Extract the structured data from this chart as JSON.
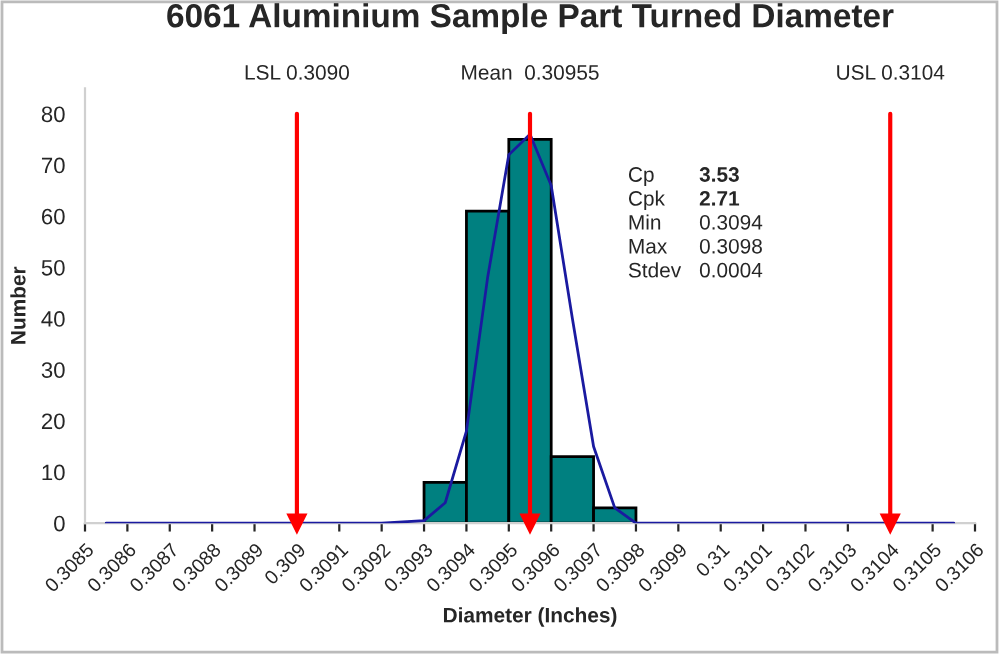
{
  "chart_data": {
    "type": "histogram",
    "title": "6061 Aluminium Sample Part Turned Diameter",
    "xlabel": "Diameter (Inches)",
    "ylabel": "Number",
    "bins": [
      0.3093,
      0.3094,
      0.3095,
      0.3096,
      0.3097,
      0.3098
    ],
    "values": [
      8,
      61,
      75,
      13,
      3
    ],
    "color": "#008080",
    "series": [
      {
        "type": "line",
        "color": "#1a1aa0",
        "x": [
          0.30855,
          0.3092,
          0.3093,
          0.30935,
          0.3094,
          0.30945,
          0.3095,
          0.30955,
          0.3096,
          0.30965,
          0.3097,
          0.30975,
          0.3098,
          0.3099,
          0.31055
        ],
        "values": [
          0,
          0,
          0.5,
          4,
          18,
          48,
          72,
          76,
          66,
          40,
          15,
          3,
          0,
          0,
          0
        ]
      }
    ],
    "ref_lines": [
      {
        "axis": "x",
        "value": 0.309,
        "label": "LSL 0.3090",
        "color": "#ff0000"
      },
      {
        "axis": "x",
        "value": 0.30955,
        "label": "Mean  0.30955",
        "color": "#ff0000"
      },
      {
        "axis": "x",
        "value": 0.3104,
        "label": "USL 0.3104",
        "color": "#ff0000"
      }
    ],
    "annotations": [
      "Cp",
      "3.53",
      "Cpk",
      "2.71",
      "Min",
      "0.3094",
      "Max",
      "0.3098",
      "Stdev",
      "0.0004"
    ],
    "xlim": [
      0.3085,
      0.3106
    ],
    "xticks": [
      0.3085,
      0.3086,
      0.3087,
      0.3088,
      0.3089,
      0.309,
      0.3091,
      0.3092,
      0.3093,
      0.3094,
      0.3095,
      0.3096,
      0.3097,
      0.3098,
      0.3099,
      0.31,
      0.3101,
      0.3102,
      0.3103,
      0.3104,
      0.3105,
      0.3106
    ],
    "ylim": [
      0,
      85
    ],
    "yticks": [
      0,
      10,
      20,
      30,
      40,
      50,
      60,
      70,
      80
    ],
    "grid": false,
    "legend": false
  }
}
